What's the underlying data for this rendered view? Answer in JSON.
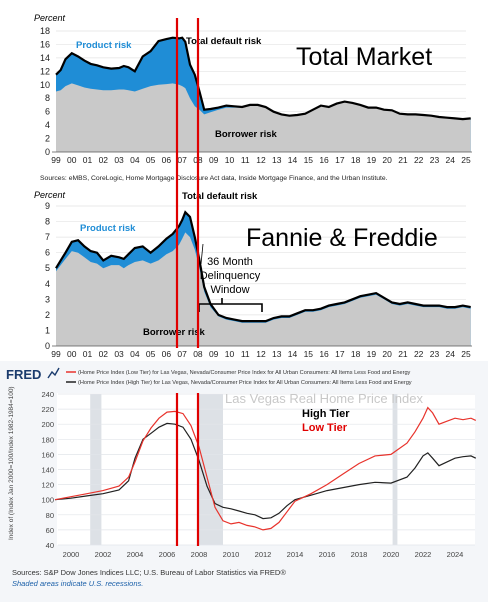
{
  "chart_data": [
    {
      "type": "area",
      "title": "Total Market",
      "ylabel": "Percent",
      "ylim": [
        0,
        18
      ],
      "yticks": [
        "0",
        "2",
        "4",
        "6",
        "8",
        "10",
        "12",
        "14",
        "16",
        "18"
      ],
      "xticks": [
        "99",
        "00",
        "01",
        "02",
        "03",
        "04",
        "05",
        "06",
        "07",
        "08",
        "09",
        "10",
        "11",
        "12",
        "13",
        "14",
        "15",
        "16",
        "17",
        "18",
        "19",
        "20",
        "21",
        "22",
        "23",
        "24",
        "25"
      ],
      "x": [
        1999.0,
        1999.3,
        1999.6,
        2000.0,
        2000.4,
        2000.8,
        2001.2,
        2001.6,
        2002.0,
        2002.5,
        2003.0,
        2003.3,
        2003.6,
        2004.0,
        2004.5,
        2005.0,
        2005.5,
        2006.0,
        2006.4,
        2006.8,
        2007.0,
        2007.2,
        2007.5,
        2007.8,
        2008.1,
        2008.4,
        2008.8,
        2009.3,
        2009.8,
        2010.3,
        2010.8,
        2011.3,
        2011.8,
        2012.3,
        2012.8,
        2013.3,
        2013.8,
        2014.3,
        2014.8,
        2015.3,
        2015.8,
        2016.3,
        2016.8,
        2017.3,
        2017.8,
        2018.3,
        2018.8,
        2019.3,
        2019.8,
        2020.3,
        2020.8,
        2021.3,
        2021.8,
        2022.3,
        2022.8,
        2023.3,
        2023.8,
        2024.3,
        2024.8,
        2025.3
      ],
      "series": [
        {
          "name": "Total default risk",
          "values": [
            11.5,
            12.2,
            13.8,
            14.7,
            14.2,
            13.6,
            13.1,
            12.9,
            12.6,
            12.4,
            12.5,
            12.8,
            12.6,
            12.0,
            14.2,
            15.0,
            16.5,
            16.8,
            17.0,
            16.9,
            17.0,
            16.4,
            13.0,
            11.5,
            9.0,
            6.3,
            6.4,
            6.6,
            6.9,
            6.8,
            6.7,
            7.0,
            7.0,
            6.7,
            6.0,
            5.6,
            5.4,
            5.5,
            5.7,
            6.3,
            6.9,
            6.7,
            7.2,
            7.5,
            7.3,
            7.0,
            6.6,
            6.6,
            6.3,
            6.2,
            5.7,
            5.6,
            5.6,
            5.5,
            5.4,
            5.2,
            5.1,
            5.0,
            4.9,
            5.0
          ]
        },
        {
          "name": "Borrower risk",
          "values": [
            9.0,
            9.2,
            9.8,
            10.2,
            9.9,
            9.6,
            9.4,
            9.3,
            9.2,
            9.2,
            9.3,
            9.3,
            9.2,
            9.0,
            9.4,
            9.8,
            10.0,
            10.1,
            10.2,
            10.0,
            9.8,
            9.5,
            8.0,
            6.8,
            6.3,
            5.6,
            5.9,
            6.3,
            6.6,
            6.6,
            6.6,
            6.9,
            6.9,
            6.6,
            5.9,
            5.5,
            5.3,
            5.4,
            5.6,
            6.2,
            6.8,
            6.6,
            7.1,
            7.4,
            7.2,
            6.9,
            6.5,
            6.5,
            6.2,
            6.1,
            5.6,
            5.5,
            5.5,
            5.4,
            5.3,
            5.1,
            5.0,
            4.9,
            4.8,
            4.9
          ]
        }
      ],
      "labels": {
        "product_risk": "Product risk",
        "total_default_risk": "Total default risk",
        "borrower_risk": "Borrower risk"
      },
      "source": "Sources: eMBS, CoreLogic, Home Mortgage Disclosure Act data, Inside Mortgage Finance, and the Urban Institute."
    },
    {
      "type": "area",
      "title": "Fannie & Freddie",
      "ylabel": "Percent",
      "ylim": [
        0,
        9
      ],
      "yticks": [
        "0",
        "1",
        "2",
        "3",
        "4",
        "5",
        "6",
        "7",
        "8",
        "9"
      ],
      "xticks": [
        "99",
        "00",
        "01",
        "02",
        "03",
        "04",
        "05",
        "06",
        "07",
        "08",
        "09",
        "10",
        "11",
        "12",
        "13",
        "14",
        "15",
        "16",
        "17",
        "18",
        "19",
        "20",
        "21",
        "22",
        "23",
        "24",
        "25"
      ],
      "x": [
        1999.0,
        1999.3,
        1999.6,
        2000.0,
        2000.4,
        2000.8,
        2001.2,
        2001.6,
        2002.0,
        2002.5,
        2003.0,
        2003.3,
        2003.6,
        2004.0,
        2004.5,
        2005.0,
        2005.5,
        2006.0,
        2006.4,
        2006.8,
        2007.0,
        2007.2,
        2007.5,
        2007.8,
        2008.1,
        2008.4,
        2008.8,
        2009.3,
        2009.8,
        2010.3,
        2010.8,
        2011.3,
        2011.8,
        2012.3,
        2012.8,
        2013.3,
        2013.8,
        2014.3,
        2014.8,
        2015.3,
        2015.8,
        2016.3,
        2016.8,
        2017.3,
        2017.8,
        2018.3,
        2018.8,
        2019.3,
        2019.8,
        2020.3,
        2020.8,
        2021.3,
        2021.8,
        2022.3,
        2022.8,
        2023.3,
        2023.8,
        2024.3,
        2024.8,
        2025.3
      ],
      "series": [
        {
          "name": "Total default risk",
          "values": [
            5.0,
            5.5,
            6.0,
            6.7,
            6.8,
            6.4,
            6.1,
            6.0,
            5.5,
            5.8,
            5.7,
            5.6,
            5.9,
            6.3,
            6.4,
            6.0,
            6.4,
            6.9,
            7.2,
            7.7,
            8.1,
            8.6,
            8.3,
            7.0,
            5.5,
            3.8,
            2.7,
            2.0,
            1.8,
            1.7,
            1.6,
            1.6,
            1.6,
            1.6,
            1.8,
            1.9,
            1.9,
            2.1,
            2.3,
            2.3,
            2.4,
            2.6,
            2.7,
            2.8,
            3.0,
            3.2,
            3.3,
            3.4,
            3.1,
            2.8,
            2.7,
            2.8,
            2.7,
            2.6,
            2.6,
            2.6,
            2.5,
            2.5,
            2.6,
            2.5
          ]
        },
        {
          "name": "Borrower risk",
          "values": [
            4.8,
            5.2,
            5.6,
            6.1,
            6.0,
            5.7,
            5.4,
            5.3,
            5.0,
            5.2,
            5.2,
            5.0,
            5.2,
            5.4,
            5.5,
            5.3,
            5.5,
            5.9,
            6.1,
            6.5,
            6.9,
            7.3,
            7.0,
            6.2,
            5.0,
            3.5,
            2.5,
            1.9,
            1.7,
            1.6,
            1.5,
            1.5,
            1.5,
            1.5,
            1.7,
            1.8,
            1.8,
            2.0,
            2.2,
            2.2,
            2.3,
            2.5,
            2.6,
            2.7,
            2.9,
            3.1,
            3.2,
            3.3,
            3.0,
            2.7,
            2.6,
            2.7,
            2.6,
            2.5,
            2.5,
            2.5,
            2.4,
            2.4,
            2.5,
            2.4
          ]
        }
      ],
      "labels": {
        "product_risk": "Product risk",
        "total_default_risk": "Total default risk",
        "borrower_risk": "Borrower risk"
      },
      "annotation": {
        "line1": "36 Month",
        "line2": "Delinquency",
        "line3": "Window"
      }
    },
    {
      "type": "line",
      "brand": "FRED",
      "overlay_title": "Las Vegas Real Home Price Index",
      "legend_high": "High Tier",
      "legend_low": "Low Tier",
      "series_title_low": "(Home Price Index (Low Tier) for Las Vegas, Nevada/Consumer Price Index for All Urban Consumers: All Items Less Food and Energy",
      "series_title_high": "(Home Price Index (High Tier) for Las Vegas, Nevada/Consumer Price Index for All Urban Consumers: All Items Less Food and Energy",
      "ylabel": "Index of (Index Jan 2000=100/Index 1982-1984=100)",
      "ylim": [
        40,
        240
      ],
      "yticks": [
        "40",
        "60",
        "80",
        "100",
        "120",
        "140",
        "160",
        "180",
        "200",
        "220",
        "240"
      ],
      "xticks": [
        "2000",
        "2002",
        "2004",
        "2006",
        "2008",
        "2010",
        "2012",
        "2014",
        "2016",
        "2018",
        "2020",
        "2022",
        "2024"
      ],
      "recessions": [
        [
          2001.2,
          2001.9
        ],
        [
          2007.9,
          2009.5
        ],
        [
          2020.1,
          2020.4
        ]
      ],
      "series": [
        {
          "name": "Low Tier",
          "color": "#e8332c",
          "x": [
            1999.0,
            2000.0,
            2001.0,
            2002.0,
            2003.0,
            2003.6,
            2004.0,
            2004.5,
            2005.0,
            2005.5,
            2006.0,
            2006.5,
            2007.0,
            2007.5,
            2008.0,
            2008.5,
            2009.0,
            2009.5,
            2010.0,
            2010.5,
            2011.0,
            2011.5,
            2012.0,
            2012.5,
            2013.0,
            2013.5,
            2014.0,
            2015.0,
            2016.0,
            2017.0,
            2018.0,
            2019.0,
            2020.0,
            2021.0,
            2021.5,
            2022.0,
            2022.3,
            2022.6,
            2023.0,
            2023.5,
            2024.0,
            2024.5,
            2025.0,
            2025.3
          ],
          "values": [
            100,
            104,
            108,
            112,
            118,
            130,
            150,
            178,
            195,
            208,
            216,
            217,
            214,
            198,
            170,
            130,
            90,
            72,
            68,
            70,
            66,
            64,
            60,
            62,
            70,
            84,
            98,
            108,
            120,
            134,
            148,
            158,
            160,
            175,
            190,
            208,
            222,
            215,
            200,
            204,
            208,
            206,
            208,
            205
          ]
        },
        {
          "name": "High Tier",
          "color": "#222222",
          "x": [
            1999.0,
            2000.0,
            2001.0,
            2002.0,
            2003.0,
            2003.6,
            2004.0,
            2004.5,
            2005.0,
            2005.5,
            2006.0,
            2006.5,
            2007.0,
            2007.5,
            2008.0,
            2008.5,
            2009.0,
            2009.5,
            2010.0,
            2010.5,
            2011.0,
            2011.5,
            2012.0,
            2012.5,
            2013.0,
            2013.5,
            2014.0,
            2015.0,
            2016.0,
            2017.0,
            2018.0,
            2019.0,
            2020.0,
            2021.0,
            2021.5,
            2022.0,
            2022.3,
            2022.6,
            2023.0,
            2023.5,
            2024.0,
            2024.5,
            2025.0,
            2025.3
          ],
          "values": [
            100,
            102,
            105,
            108,
            113,
            125,
            155,
            180,
            188,
            196,
            201,
            200,
            196,
            180,
            152,
            118,
            95,
            90,
            88,
            85,
            82,
            80,
            75,
            76,
            82,
            92,
            100,
            106,
            112,
            116,
            120,
            123,
            122,
            130,
            142,
            158,
            162,
            155,
            145,
            150,
            155,
            157,
            158,
            155
          ]
        }
      ],
      "source_line1": "Sources: S&P Dow Jones Indices LLC; U.S. Bureau of Labor Statistics via FRED®",
      "source_line2": "Shaded areas indicate U.S. recessions."
    }
  ]
}
